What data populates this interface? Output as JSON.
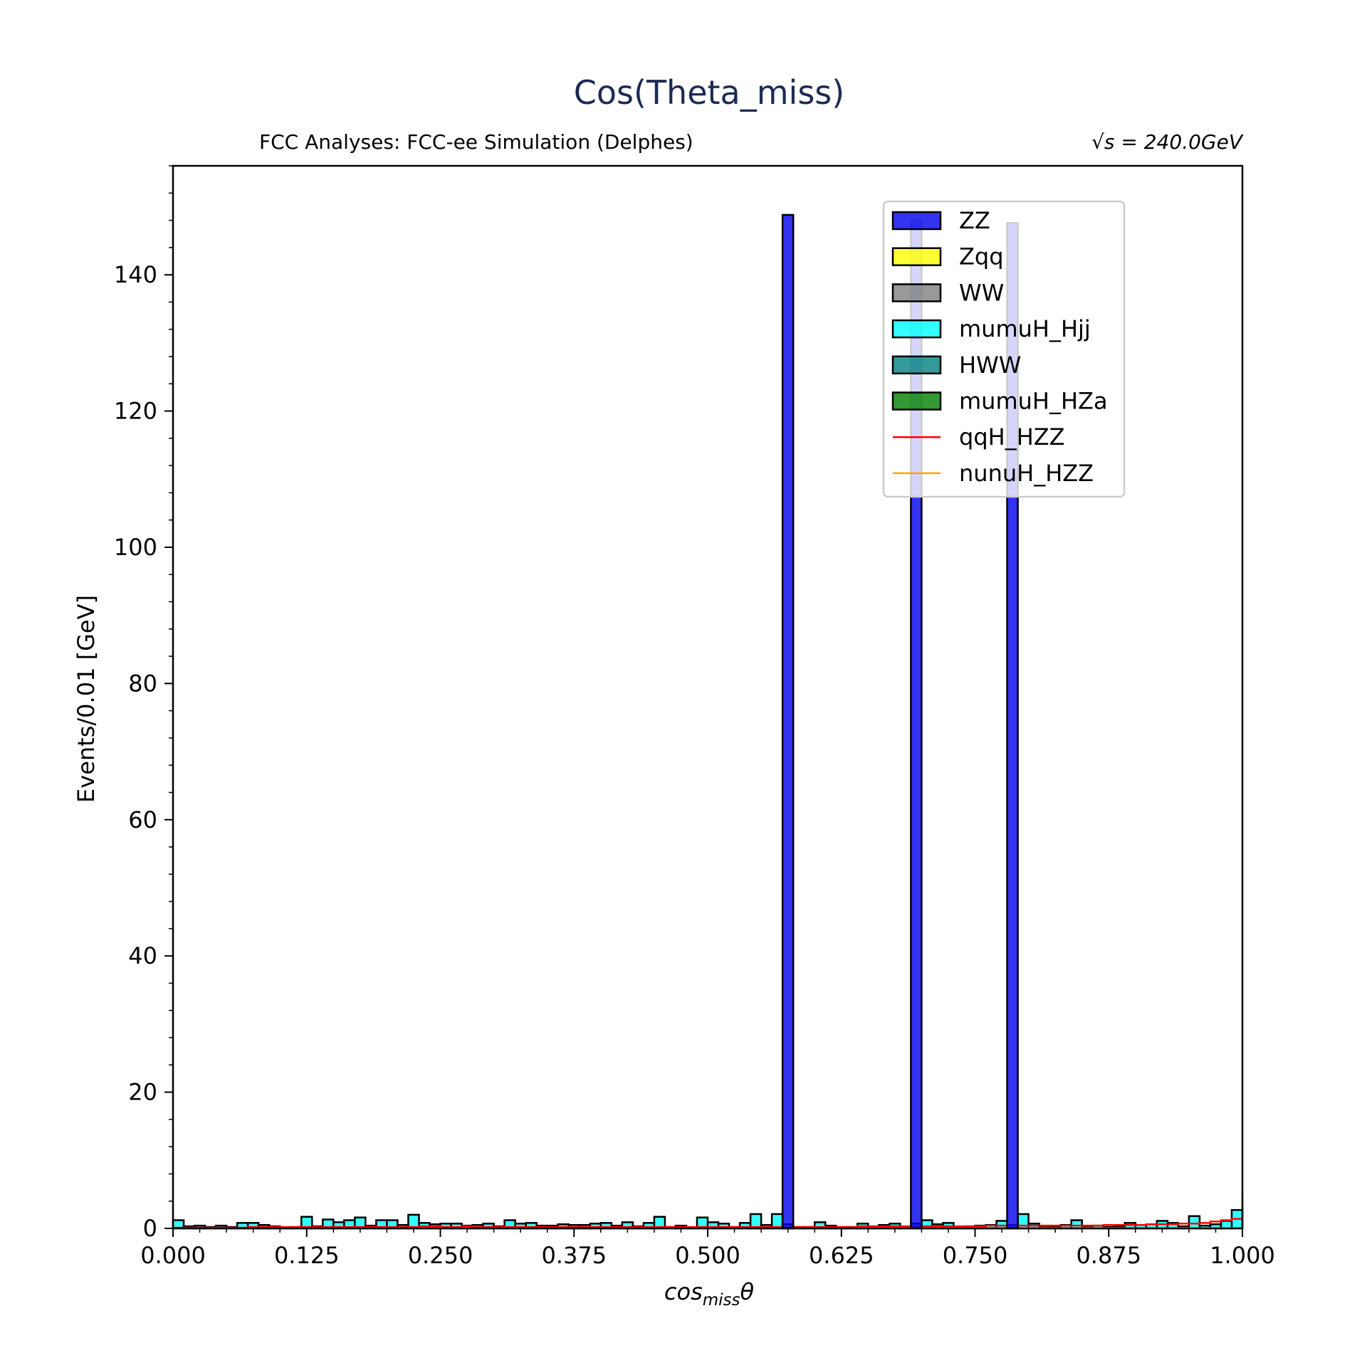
{
  "chart_data": {
    "type": "bar",
    "title": "Cos(Theta_miss)",
    "subtitle_left": "FCC Analyses: FCC-ee Simulation (Delphes)",
    "subtitle_right": "√s = 240.0GeV",
    "xlabel": "cos_missθ",
    "xlabel_main": "cos",
    "xlabel_sub": "miss",
    "xlabel_tail": "θ",
    "ylabel": "Events/0.01 [GeV]",
    "xlim": [
      0,
      1
    ],
    "ylim": [
      0,
      156
    ],
    "bin_width": 0.01,
    "grid": false,
    "legend_position": "top-right",
    "x_ticks": [
      "0.000",
      "0.125",
      "0.250",
      "0.375",
      "0.500",
      "0.625",
      "0.750",
      "0.875",
      "1.000"
    ],
    "y_ticks": [
      "0",
      "20",
      "40",
      "60",
      "80",
      "100",
      "120",
      "140"
    ],
    "colors": {
      "title": "#1c2a55",
      "ZZ": "#0000ee",
      "Zqq": "#ffff00",
      "WW": "#808080",
      "mumuH_Hjj": "#00ffff",
      "HWW": "#008080",
      "mumuH_HZa": "#008000",
      "qqH_HZZ": "#ff0000",
      "nunuH_HZZ": "#ffa500"
    },
    "legend": [
      {
        "label": "ZZ",
        "kind": "patch",
        "color": "#0000ee"
      },
      {
        "label": "Zqq",
        "kind": "patch",
        "color": "#ffff00"
      },
      {
        "label": "WW",
        "kind": "patch",
        "color": "#808080"
      },
      {
        "label": "mumuH_Hjj",
        "kind": "patch",
        "color": "#00ffff"
      },
      {
        "label": "HWW",
        "kind": "patch",
        "color": "#008080"
      },
      {
        "label": "mumuH_HZa",
        "kind": "patch",
        "color": "#008000"
      },
      {
        "label": "qqH_HZZ",
        "kind": "line",
        "color": "#ff0000"
      },
      {
        "label": "nunuH_HZZ",
        "kind": "line",
        "color": "#ffa500"
      }
    ],
    "series": [
      {
        "name": "ZZ",
        "kind": "filled",
        "bins": [
          {
            "x0": 0.57,
            "value": 148.8
          },
          {
            "x0": 0.69,
            "value": 148.0
          },
          {
            "x0": 0.78,
            "value": 147.6
          }
        ]
      },
      {
        "name": "mumuH_Hjj",
        "kind": "filled",
        "values": [
          1.2,
          0.3,
          0.4,
          0.2,
          0.4,
          0.2,
          0.8,
          0.8,
          0.5,
          0.3,
          0.1,
          0.2,
          1.7,
          0.3,
          1.3,
          0.9,
          1.2,
          1.6,
          0.4,
          1.2,
          1.2,
          0.5,
          2.0,
          0.8,
          0.6,
          0.7,
          0.7,
          0.4,
          0.5,
          0.7,
          0.3,
          1.2,
          0.7,
          0.8,
          0.4,
          0.4,
          0.6,
          0.5,
          0.5,
          0.7,
          0.8,
          0.4,
          0.9,
          0.3,
          0.8,
          1.7,
          0.2,
          0.4,
          0.1,
          1.6,
          0.9,
          0.7,
          0.2,
          0.8,
          2.1,
          0.5,
          2.1,
          0.6,
          0.2,
          0.2,
          0.9,
          0.4,
          0.2,
          0.2,
          0.7,
          0.3,
          0.5,
          0.7,
          0.1,
          0.7,
          1.2,
          0.6,
          0.8,
          0.2,
          0.3,
          0.4,
          0.5,
          1.1,
          0.5,
          2.1,
          0.7,
          0.3,
          0.2,
          0.5,
          1.2,
          0.3,
          0.4,
          0.2,
          0.3,
          0.8,
          0.5,
          0.6,
          1.1,
          0.8,
          0.3,
          1.8,
          0.4,
          0.6,
          1.1,
          2.7,
          1.2
        ]
      },
      {
        "name": "qqH_HZZ",
        "kind": "step",
        "values": [
          0.1,
          0.1,
          0.1,
          0.1,
          0.1,
          0.1,
          0.1,
          0.2,
          0.2,
          0.2,
          0.2,
          0.2,
          0.2,
          0.2,
          0.2,
          0.2,
          0.2,
          0.2,
          0.2,
          0.2,
          0.2,
          0.2,
          0.2,
          0.3,
          0.3,
          0.2,
          0.2,
          0.3,
          0.2,
          0.2,
          0.2,
          0.2,
          0.2,
          0.2,
          0.2,
          0.2,
          0.2,
          0.2,
          0.2,
          0.2,
          0.2,
          0.2,
          0.2,
          0.2,
          0.2,
          0.2,
          0.2,
          0.2,
          0.2,
          0.2,
          0.2,
          0.2,
          0.2,
          0.2,
          0.2,
          0.2,
          0.2,
          0.2,
          0.2,
          0.2,
          0.2,
          0.2,
          0.2,
          0.2,
          0.3,
          0.3,
          0.3,
          0.3,
          0.3,
          0.3,
          0.3,
          0.3,
          0.3,
          0.3,
          0.3,
          0.3,
          0.4,
          0.4,
          0.4,
          0.4,
          0.4,
          0.4,
          0.4,
          0.4,
          0.4,
          0.4,
          0.4,
          0.5,
          0.5,
          0.5,
          0.5,
          0.6,
          0.6,
          0.6,
          0.7,
          0.7,
          0.8,
          1.0,
          1.2,
          1.4,
          5.1
        ]
      },
      {
        "name": "nunuH_HZZ",
        "kind": "step",
        "values": [
          0.05,
          0.05,
          0.05,
          0.05,
          0.05,
          0.05,
          0.05,
          0.05,
          0.05,
          0.05,
          0.05,
          0.05,
          0.05,
          0.05,
          0.05,
          0.05,
          0.05,
          0.05,
          0.05,
          0.05,
          0.05,
          0.05,
          0.05,
          0.05,
          0.05,
          0.05,
          0.05,
          0.05,
          0.05,
          0.05,
          0.05,
          0.05,
          0.05,
          0.05,
          0.05,
          0.05,
          0.05,
          0.05,
          0.05,
          0.05,
          0.05,
          0.05,
          0.05,
          0.05,
          0.05,
          0.05,
          0.05,
          0.05,
          0.05,
          0.05,
          0.05,
          0.05,
          0.05,
          0.05,
          0.05,
          0.05,
          0.05,
          0.05,
          0.05,
          0.05,
          0.05,
          0.05,
          0.05,
          0.05,
          0.05,
          0.05,
          0.05,
          0.05,
          0.05,
          0.05,
          0.05,
          0.05,
          0.05,
          0.05,
          0.05,
          0.05,
          0.05,
          0.05,
          0.05,
          0.05,
          0.05,
          0.05,
          0.05,
          0.05,
          0.05,
          0.05,
          0.05,
          0.05,
          0.05,
          0.05,
          0.05,
          0.05,
          0.05,
          0.05,
          0.05,
          0.05,
          0.05,
          0.05,
          0.05,
          0.05,
          0.1
        ]
      }
    ]
  }
}
